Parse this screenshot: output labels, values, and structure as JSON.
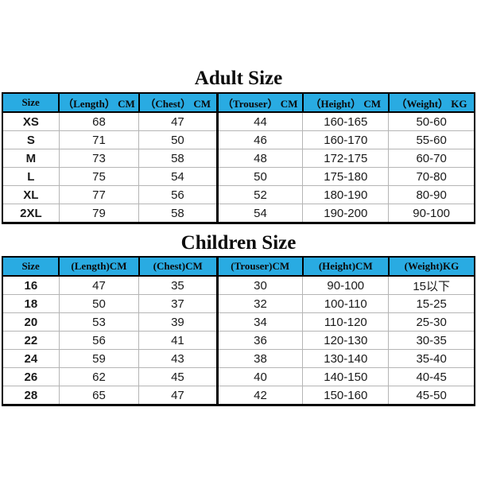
{
  "colors": {
    "header_background": "#29ABE2",
    "grid_dark": "#000000",
    "grid_light": "#b5b5b5",
    "text": "#1a1a1a",
    "page_background": "#ffffff"
  },
  "chart_data": [
    {
      "type": "table",
      "title": "Adult Size",
      "columns": [
        "Size",
        "（Length） CM",
        "（Chest） CM",
        "（Trouser） CM",
        "（Height） CM",
        "（Weight） KG"
      ],
      "rows": [
        [
          "XS",
          "68",
          "47",
          "44",
          "160-165",
          "50-60"
        ],
        [
          "S",
          "71",
          "50",
          "46",
          "160-170",
          "55-60"
        ],
        [
          "M",
          "73",
          "58",
          "48",
          "172-175",
          "60-70"
        ],
        [
          "L",
          "75",
          "54",
          "50",
          "175-180",
          "70-80"
        ],
        [
          "XL",
          "77",
          "56",
          "52",
          "180-190",
          "80-90"
        ],
        [
          "2XL",
          "79",
          "58",
          "54",
          "190-200",
          "90-100"
        ]
      ]
    },
    {
      "type": "table",
      "title": "Children Size",
      "columns": [
        "Size",
        "(Length)CM",
        "(Chest)CM",
        "(Trouser)CM",
        "(Height)CM",
        "(Weight)KG"
      ],
      "rows": [
        [
          "16",
          "47",
          "35",
          "30",
          "90-100",
          "15以下"
        ],
        [
          "18",
          "50",
          "37",
          "32",
          "100-110",
          "15-25"
        ],
        [
          "20",
          "53",
          "39",
          "34",
          "110-120",
          "25-30"
        ],
        [
          "22",
          "56",
          "41",
          "36",
          "120-130",
          "30-35"
        ],
        [
          "24",
          "59",
          "43",
          "38",
          "130-140",
          "35-40"
        ],
        [
          "26",
          "62",
          "45",
          "40",
          "140-150",
          "40-45"
        ],
        [
          "28",
          "65",
          "47",
          "42",
          "150-160",
          "45-50"
        ]
      ]
    }
  ]
}
